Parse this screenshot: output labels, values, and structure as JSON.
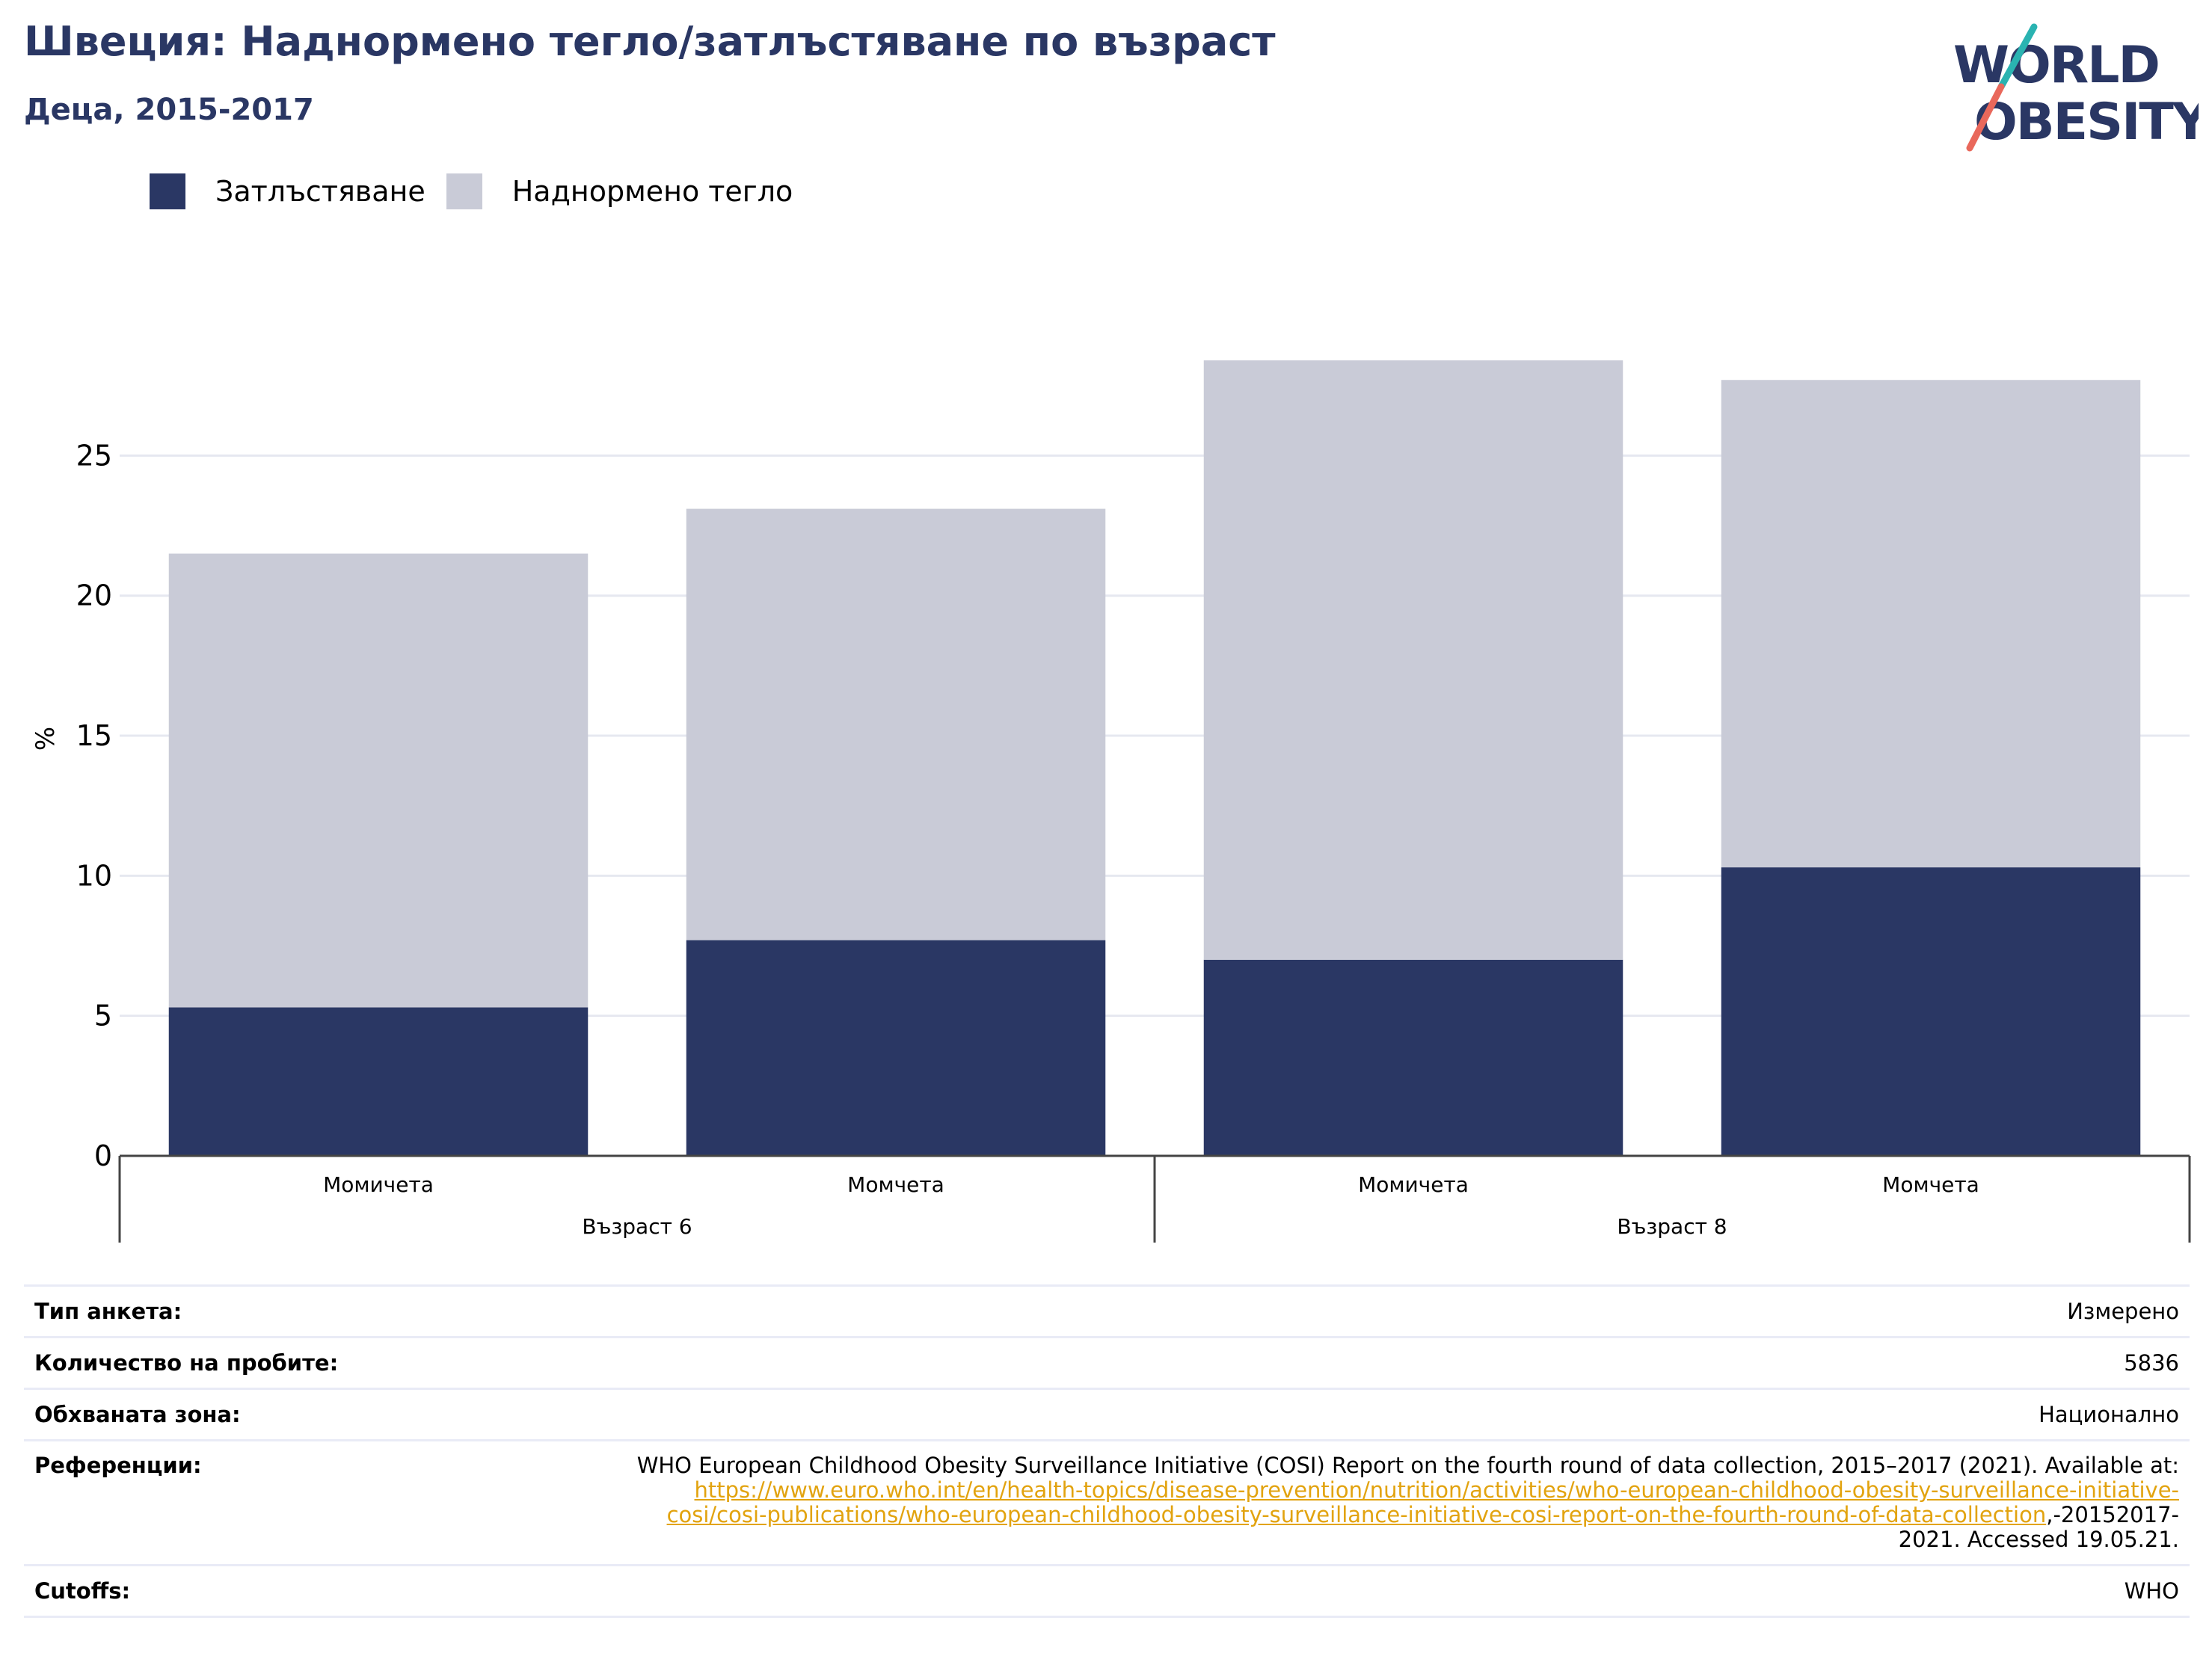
{
  "title": "Швеция: Наднормено тегло/затлъстяване по възраст",
  "subtitle": "Деца, 2015-2017",
  "logo": {
    "line1": "WORLD",
    "line2": "OBESITY"
  },
  "colors": {
    "title": "#2a3764",
    "obesity": "#2a3764",
    "overweight": "#c9cbd7",
    "grid": "#e6e8f0",
    "link": "#e2a30f",
    "logo_teal": "#2ab3b1",
    "logo_coral": "#e9685b"
  },
  "chart_data": {
    "type": "bar",
    "stacked": true,
    "ylabel": "%",
    "ylim": [
      0,
      28.4
    ],
    "yticks": [
      0,
      5,
      10,
      15,
      20,
      25
    ],
    "grid": true,
    "legend_position": "top-left",
    "categories": [
      "Момичета",
      "Момчета",
      "Момичета",
      "Момчета"
    ],
    "groups": [
      {
        "label": "Възраст 6",
        "span": [
          0,
          1
        ]
      },
      {
        "label": "Възраст 8",
        "span": [
          2,
          3
        ]
      }
    ],
    "series": [
      {
        "name": "Затлъстяване",
        "values": [
          5.3,
          7.7,
          7.0,
          10.3
        ]
      },
      {
        "name": "Наднормено тегло",
        "values": [
          16.2,
          15.4,
          21.4,
          17.4
        ]
      }
    ]
  },
  "info": {
    "survey_label": "Тип анкета:",
    "survey_value": "Измерено",
    "sample_label": "Количество на пробите:",
    "sample_value": "5836",
    "area_label": "Обхваната зона:",
    "area_value": "Национално",
    "refs_label": "Референции:",
    "refs_text_1": "WHO European Childhood Obesity Surveillance Initiative (COSI) Report on the fourth round of data collection, 2015–2017 (2021). Available at:",
    "refs_link_1": "https://www.euro.who.int/en/health-topics/disease-prevention/nutrition/activities/who-european-childhood-obesity-surveillance-initiative-",
    "refs_link_2": "cosi/cosi-publications/who-european-childhood-obesity-surveillance-initiative-cosi-report-on-the-fourth-round-of-data-collection",
    "refs_text_2": ",-20152017-",
    "refs_text_3": "2021. Accessed 19.05.21.",
    "cutoffs_label": "Cutoffs:",
    "cutoffs_value": "WHO"
  }
}
